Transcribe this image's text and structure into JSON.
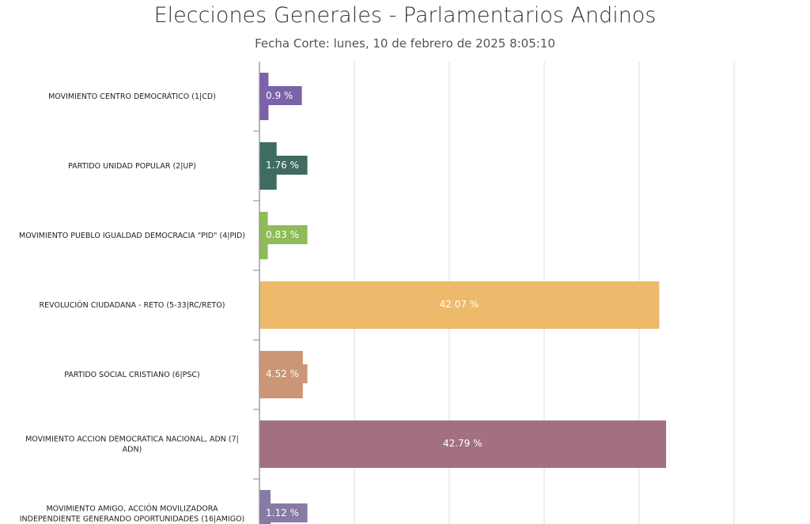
{
  "chart_data": {
    "type": "bar",
    "orientation": "horizontal",
    "title": "Elecciones Generales - Parlamentarios Andinos",
    "subtitle": "Fecha Corte: lunes, 10 de febrero de 2025 8:05:10",
    "categories": [
      [
        "MOVIMIENTO CENTRO DEMOCRÁTICO (1|CD)"
      ],
      [
        "PARTIDO UNIDAD POPULAR (2|UP)"
      ],
      [
        "MOVIMIENTO PUEBLO IGUALDAD DEMOCRACIA \"PID\" (4|PID)"
      ],
      [
        "REVOLUCIÓN CIUDADANA - RETO (5-33|RC/RETO)"
      ],
      [
        "PARTIDO SOCIAL CRISTIANO (6|PSC)"
      ],
      [
        "MOVIMIENTO ACCION DEMOCRATICA NACIONAL, ADN (7|",
        "ADN)"
      ],
      [
        "MOVIMIENTO AMIGO, ACCIÓN MOVILIZADORA",
        "INDEPENDIENTE GENERANDO OPORTUNIDADES (16|AMIGO)"
      ]
    ],
    "values": [
      0.9,
      1.76,
      0.83,
      42.07,
      4.52,
      42.79,
      1.12
    ],
    "data_labels": [
      "0.9 %",
      "1.76 %",
      "0.83 %",
      "42.07 %",
      "4.52 %",
      "42.79 %",
      "1.12 %"
    ],
    "colors": [
      "#7a63a8",
      "#3f6b63",
      "#8fbb58",
      "#edb96a",
      "#cc9676",
      "#a3707f",
      "#877ba6"
    ],
    "xlim": [
      0,
      50
    ],
    "grid": true,
    "legend": "none"
  }
}
